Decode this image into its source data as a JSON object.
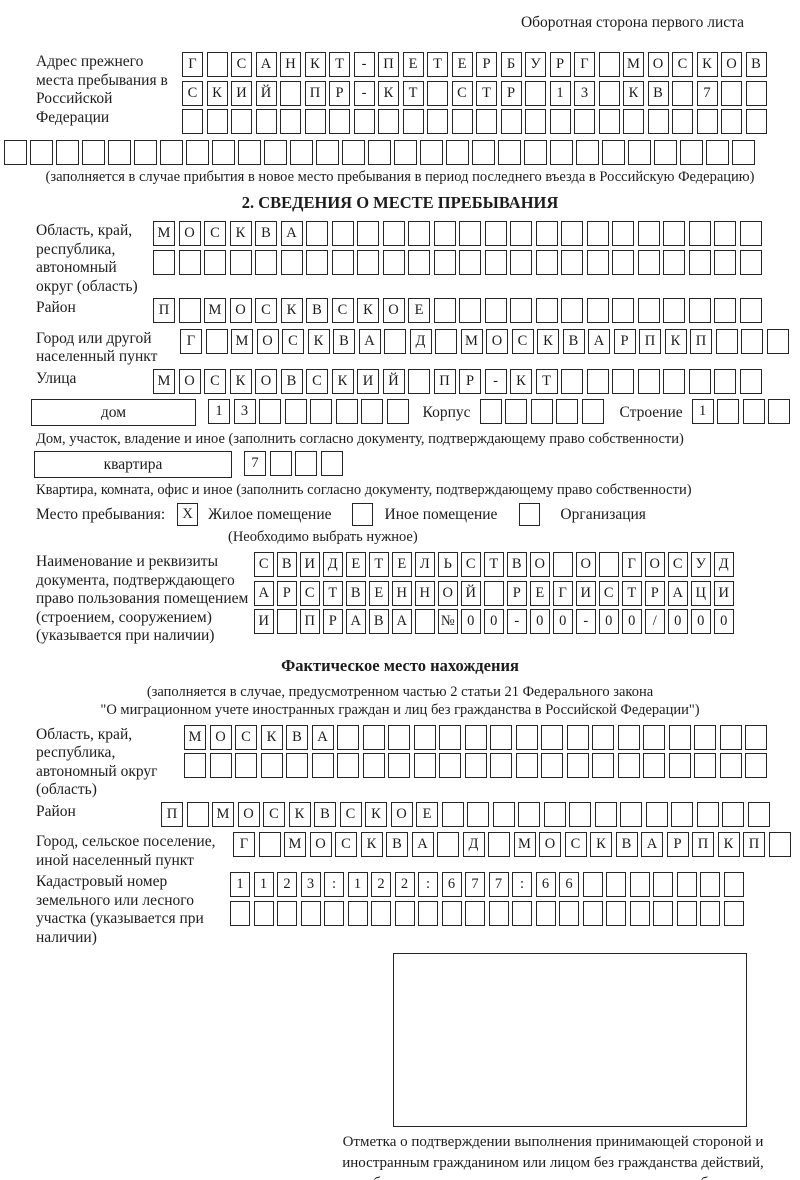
{
  "header": {
    "note": "Оборотная сторона первого листа"
  },
  "prev_address": {
    "label": "Адрес прежнего места пребывания в Российской Федерации",
    "row1": [
      "Г",
      "",
      "С",
      "А",
      "Н",
      "К",
      "Т",
      "-",
      "П",
      "Е",
      "Т",
      "Е",
      "Р",
      "Б",
      "У",
      "Р",
      "Г",
      "",
      "М",
      "О",
      "С",
      "К",
      "О",
      "В"
    ],
    "row2": [
      "С",
      "К",
      "И",
      "Й",
      "",
      "П",
      "Р",
      "-",
      "К",
      "Т",
      "",
      "С",
      "Т",
      "Р",
      "",
      "1",
      "3",
      "",
      "К",
      "В",
      "",
      "7",
      "",
      ""
    ],
    "row3": 24,
    "row4": 29,
    "note": "(заполняется в случае прибытия в новое место пребывания в период последнего въезда в Российскую Федерацию)"
  },
  "section2": {
    "title": "2. СВЕДЕНИЯ О МЕСТЕ ПРЕБЫВАНИЯ",
    "region": {
      "label": "Область, край, республика, автономный округ (область)",
      "row1": [
        "М",
        "О",
        "С",
        "К",
        "В",
        "А",
        "",
        "",
        "",
        "",
        "",
        "",
        "",
        "",
        "",
        "",
        "",
        "",
        "",
        "",
        "",
        "",
        "",
        ""
      ],
      "row2": 24
    },
    "district": {
      "label": "Район",
      "row": [
        "П",
        "",
        "М",
        "О",
        "С",
        "К",
        "В",
        "С",
        "К",
        "О",
        "Е",
        "",
        "",
        "",
        "",
        "",
        "",
        "",
        "",
        "",
        "",
        "",
        "",
        ""
      ]
    },
    "city": {
      "label": "Город или другой населенный пункт",
      "row": [
        "Г",
        "",
        "М",
        "О",
        "С",
        "К",
        "В",
        "А",
        "",
        "Д",
        "",
        "М",
        "О",
        "С",
        "К",
        "В",
        "А",
        "Р",
        "П",
        "К",
        "П",
        "",
        "",
        ""
      ]
    },
    "street": {
      "label": "Улица",
      "row": [
        "М",
        "О",
        "С",
        "К",
        "О",
        "В",
        "С",
        "К",
        "И",
        "Й",
        "",
        "П",
        "Р",
        "-",
        "К",
        "Т",
        "",
        "",
        "",
        "",
        "",
        "",
        "",
        ""
      ]
    },
    "house": {
      "box_label": "дом",
      "cells": [
        "1",
        "3",
        "",
        "",
        "",
        "",
        "",
        ""
      ],
      "korpus_label": "Корпус",
      "korpus_cells": 5,
      "stroenie_label": "Строение",
      "stroenie_cells": [
        "1",
        "",
        "",
        ""
      ],
      "note": "Дом, участок, владение и иное (заполнить согласно документу, подтверждающему право собственности)"
    },
    "apartment": {
      "box_label": "квартира",
      "cells": [
        "7",
        "",
        "",
        ""
      ],
      "note": "Квартира, комната, офис и иное (заполнить согласно документу, подтверждающему право собственности)"
    },
    "place_type": {
      "label": "Место пребывания:",
      "options": [
        {
          "label": "Жилое помещение",
          "checked": "X"
        },
        {
          "label": "Иное помещение",
          "checked": ""
        },
        {
          "label": "Организация",
          "checked": ""
        }
      ],
      "note": "(Необходимо выбрать нужное)"
    },
    "document": {
      "label": "Наименование и реквизиты документа, подтверждающего право пользования помещением (строением, сооружением) (указывается при наличии)",
      "row1": [
        "С",
        "В",
        "И",
        "Д",
        "Е",
        "Т",
        "Е",
        "Л",
        "Ь",
        "С",
        "Т",
        "В",
        "О",
        "",
        "О",
        "",
        "Г",
        "О",
        "С",
        "У",
        "Д"
      ],
      "row2": [
        "А",
        "Р",
        "С",
        "Т",
        "В",
        "Е",
        "Н",
        "Н",
        "О",
        "Й",
        "",
        "Р",
        "Е",
        "Г",
        "И",
        "С",
        "Т",
        "Р",
        "А",
        "Ц",
        "И"
      ],
      "row3": [
        "И",
        "",
        "П",
        "Р",
        "А",
        "В",
        "А",
        "",
        "№",
        "0",
        "0",
        "-",
        "0",
        "0",
        "-",
        "0",
        "0",
        "/",
        "0",
        "0",
        "0"
      ]
    }
  },
  "actual_location": {
    "title": "Фактическое место нахождения",
    "note1": "(заполняется в случае, предусмотренном частью 2 статьи 21 Федерального закона",
    "note2": "\"О миграционном учете иностранных граждан и лиц без гражданства в Российской Федерации\")",
    "region": {
      "label": "Область, край, республика, автономный округ (область)",
      "row1": [
        "М",
        "О",
        "С",
        "К",
        "В",
        "А",
        "",
        "",
        "",
        "",
        "",
        "",
        "",
        "",
        "",
        "",
        "",
        "",
        "",
        "",
        "",
        "",
        ""
      ],
      "row2": 23
    },
    "district": {
      "label": "Район",
      "row": [
        "П",
        "",
        "М",
        "О",
        "С",
        "К",
        "В",
        "С",
        "К",
        "О",
        "Е",
        "",
        "",
        "",
        "",
        "",
        "",
        "",
        "",
        "",
        "",
        "",
        "",
        ""
      ]
    },
    "city": {
      "label": "Город, сельское поселение, иной населенный пункт",
      "row": [
        "Г",
        "",
        "М",
        "О",
        "С",
        "К",
        "В",
        "А",
        "",
        "Д",
        "",
        "М",
        "О",
        "С",
        "К",
        "В",
        "А",
        "Р",
        "П",
        "К",
        "П",
        ""
      ]
    },
    "cadastral": {
      "label": "Кадастровый номер земельного или лесного участка (указывается при наличии)",
      "row1": [
        "1",
        "1",
        "2",
        "3",
        ":",
        "1",
        "2",
        "2",
        ":",
        "6",
        "7",
        "7",
        ":",
        "6",
        "6",
        "",
        "",
        "",
        "",
        "",
        "",
        ""
      ],
      "row2": 22
    },
    "stamp_caption": "Отметка о подтверждении выполнения принимающей стороной и иностранным гражданином или лицом без гражданства действий, необходимых для его постановки на учет по месту пребывания"
  }
}
